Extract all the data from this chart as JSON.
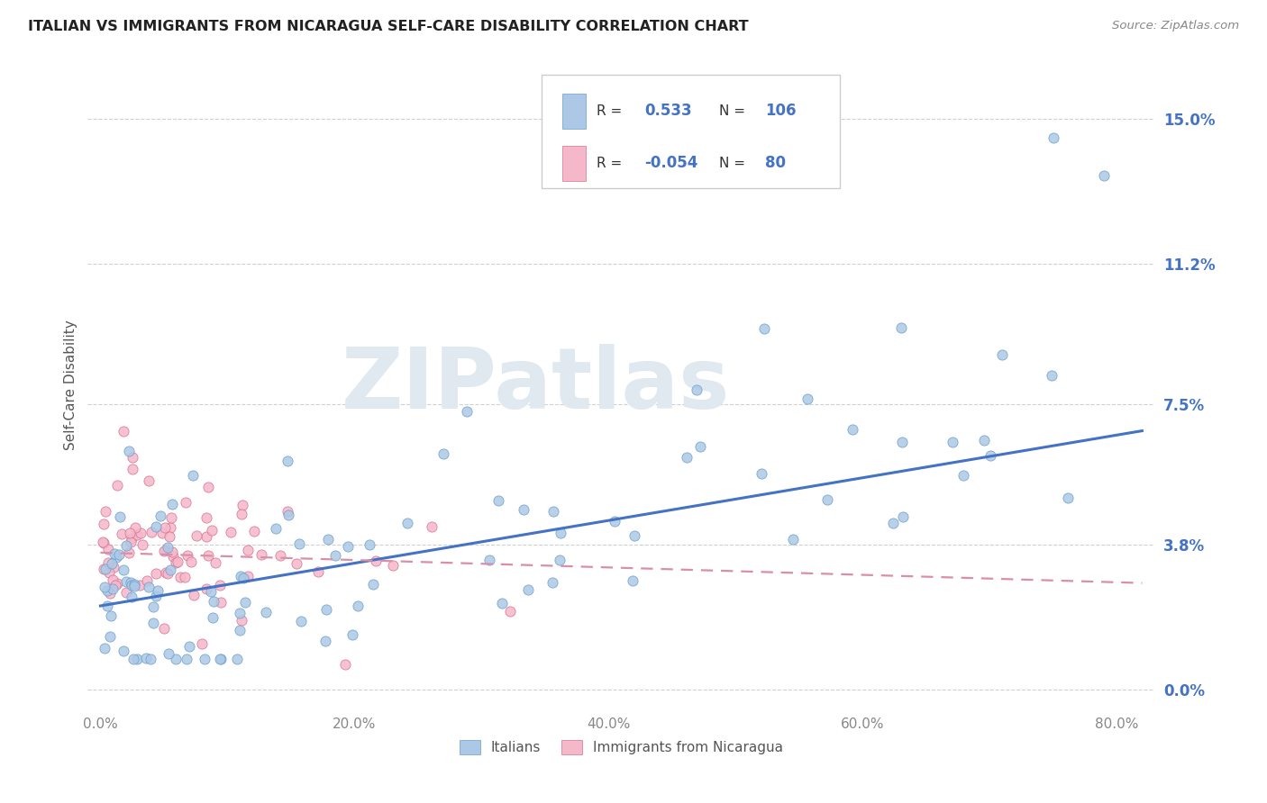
{
  "title": "ITALIAN VS IMMIGRANTS FROM NICARAGUA SELF-CARE DISABILITY CORRELATION CHART",
  "source": "Source: ZipAtlas.com",
  "ylabel": "Self-Care Disability",
  "ytick_values": [
    0.0,
    3.8,
    7.5,
    11.2,
    15.0
  ],
  "xtick_values": [
    0.0,
    20.0,
    40.0,
    60.0,
    80.0
  ],
  "xlim": [
    -1,
    83
  ],
  "ylim": [
    -0.5,
    16.5
  ],
  "legend_r1": "0.533",
  "legend_n1": "106",
  "legend_r2": "-0.054",
  "legend_n2": "80",
  "color_italian": "#adc8e6",
  "color_nicaragua": "#f5b8cb",
  "line_color_italian": "#4472c4",
  "line_color_nicaragua": "#d98fa8",
  "marker_edge_italian": "#6aa0cc",
  "marker_edge_nicaragua": "#d87090",
  "background_color": "#ffffff",
  "grid_color": "#d0d0d0",
  "title_color": "#222222",
  "tick_color_y": "#4472c4",
  "tick_color_x": "#888888",
  "watermark_text": "ZIPatlas",
  "watermark_color": "#e0e8f0",
  "italian_reg_x0": 0,
  "italian_reg_x1": 82,
  "italian_reg_y0": 2.2,
  "italian_reg_y1": 6.8,
  "nicaragua_reg_x0": 0,
  "nicaragua_reg_x1": 82,
  "nicaragua_reg_y0": 3.6,
  "nicaragua_reg_y1": 2.8
}
